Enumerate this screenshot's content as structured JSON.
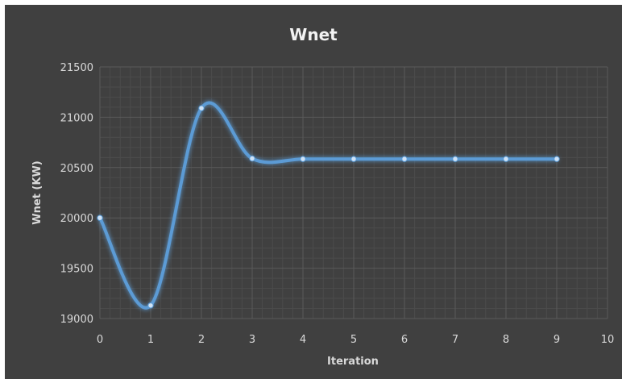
{
  "chart_data": {
    "type": "line",
    "title": "Wnet",
    "xlabel": "Iteration",
    "ylabel": "Wnet (KW)",
    "xlim": [
      0,
      10
    ],
    "ylim": [
      19000,
      21500
    ],
    "xticks": [
      "0",
      "1",
      "2",
      "3",
      "4",
      "5",
      "6",
      "7",
      "8",
      "9",
      "10"
    ],
    "yticks": [
      "19000",
      "19500",
      "20000",
      "20500",
      "21000",
      "21500"
    ],
    "x": [
      0,
      1,
      2,
      3,
      4,
      5,
      6,
      7,
      8,
      9
    ],
    "series": [
      {
        "values": [
          20000,
          19130,
          21090,
          20590,
          20585,
          20585,
          20585,
          20585,
          20585,
          20585
        ],
        "color": "#5b9bd5"
      }
    ],
    "smooth": true,
    "grid": true,
    "legend": "none",
    "colors": {
      "background": "#404040",
      "grid_major": "#5a5a5a",
      "grid_minor": "#4b4b4b",
      "text": "#d9d9d9"
    }
  }
}
